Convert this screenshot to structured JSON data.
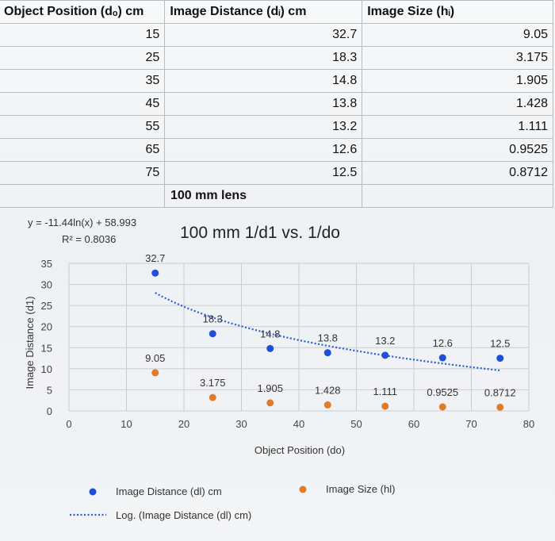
{
  "table": {
    "headers": [
      "Object Position (dₒ) cm",
      "Image Distance (dᵢ) cm",
      "Image Size (hᵢ)"
    ],
    "rows": [
      [
        "15",
        "32.7",
        "9.05"
      ],
      [
        "25",
        "18.3",
        "3.175"
      ],
      [
        "35",
        "14.8",
        "1.905"
      ],
      [
        "45",
        "13.8",
        "1.428"
      ],
      [
        "55",
        "13.2",
        "1.111"
      ],
      [
        "65",
        "12.6",
        "0.9525"
      ],
      [
        "75",
        "12.5",
        "0.8712"
      ]
    ],
    "note": "100 mm lens"
  },
  "chart_data": {
    "type": "scatter",
    "title": "100 mm 1/d1 vs. 1/do",
    "xlabel": "Object Position (do)",
    "ylabel": "Image Distance (d1)",
    "xlim": [
      0,
      80
    ],
    "ylim": [
      0,
      35
    ],
    "xticks": [
      0,
      10,
      20,
      30,
      40,
      50,
      60,
      70,
      80
    ],
    "yticks": [
      0,
      5,
      10,
      15,
      20,
      25,
      30,
      35
    ],
    "grid": true,
    "legend_position": "bottom",
    "trendline": {
      "type": "log",
      "series": "Image Distance (dl) cm",
      "name": "Log. (Image Distance (dl) cm)",
      "equation": "y = -11.44ln(x) + 58.993",
      "r_squared": "R² = 0.8036",
      "a": -11.44,
      "b": 58.993
    },
    "series": [
      {
        "name": "Image Distance (dl) cm",
        "color": "#1f4fd8",
        "x": [
          15,
          25,
          35,
          45,
          55,
          65,
          75
        ],
        "y": [
          32.7,
          18.3,
          14.8,
          13.8,
          13.2,
          12.6,
          12.5
        ],
        "labels": [
          "32.7",
          "18.3",
          "14.8",
          "13.8",
          "13.2",
          "12.6",
          "12.5"
        ]
      },
      {
        "name": "Image Size (hl)",
        "color": "#e07b2a",
        "x": [
          15,
          25,
          35,
          45,
          55,
          65,
          75
        ],
        "y": [
          9.05,
          3.175,
          1.905,
          1.428,
          1.111,
          0.9525,
          0.8712
        ],
        "labels": [
          "9.05",
          "3.175",
          "1.905",
          "1.428",
          "1.111",
          "0.9525",
          "0.8712"
        ]
      }
    ]
  }
}
